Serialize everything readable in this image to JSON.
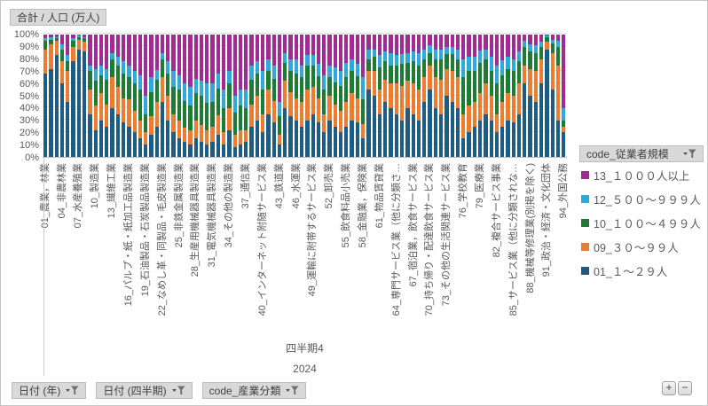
{
  "value_field_button": {
    "label": "合計 / 人口 (万人)"
  },
  "legend": {
    "field_button": "code_従業者規模",
    "items": [
      {
        "label": "13_１０００人以上",
        "color": "#A02B93"
      },
      {
        "label": "12_５００～９９９人",
        "color": "#31A8DC"
      },
      {
        "label": "10_１００～４９９人",
        "color": "#1E7B34"
      },
      {
        "label": "09_３０～９９人",
        "color": "#EC7C30"
      },
      {
        "label": "01_１～２９人",
        "color": "#1F5C83"
      }
    ]
  },
  "axis_field_buttons": [
    {
      "name": "axis-field-button-date-year",
      "label": "日付 (年)"
    },
    {
      "name": "axis-field-button-date-quarter",
      "label": "日付 (四半期)"
    },
    {
      "name": "axis-field-button-industry-code",
      "label": "code_産業分類"
    }
  ],
  "group_labels": {
    "quarter": "四半期4",
    "year": "2024"
  },
  "expand_collapse": {
    "plus": "+",
    "minus": "−"
  },
  "chart_data": {
    "type": "bar",
    "subtype": "100-percent-stacked-column",
    "title": "合計 / 人口 (万人)",
    "ylim": [
      0,
      100
    ],
    "grid": true,
    "legend_position": "right",
    "y_ticks": [
      "100%",
      "90%",
      "80%",
      "70%",
      "60%",
      "50%",
      "40%",
      "30%",
      "20%",
      "10%",
      "0%"
    ],
    "x_label_interval": 3,
    "x_labels_shown": [
      "01_農業，林業",
      "04_非農林業",
      "07_水産養殖業",
      "10_製造業",
      "13_繊維工業",
      "16_パルプ・紙・紙加工品製造業",
      "19_石油製品・石炭製品製造業",
      "22_なめし革・同製品・毛皮製造業",
      "25_非鉄金属製造業",
      "28_生産用機械器具製造業",
      "31_電気機械器具製造業",
      "34_その他の製造業",
      "37_通信業",
      "40_インターネット附随サービス業",
      "43_鉄道業",
      "46_水運業",
      "49_運輸に附帯するサービス業",
      "52_卸売業",
      "55_飲食料品小売業",
      "58_金融業，保険業",
      "61_物品賃貸業",
      "64_専門サービス業（他に分類さ…",
      "67_宿泊業，飲食サービス業",
      "70_持ち帰り・配達飲食サービス業",
      "73_その他の生活関連サービス業",
      "76_学校教育",
      "79_医療業",
      "82_複合サービス事業",
      "85_サービス業（他に分類されな…",
      "88_機械等修理業(別掲を除く)",
      "91_政治・経済・文化団体",
      "94_外国公務"
    ],
    "stack_order_bottom_to_top": [
      "01_１～２９人",
      "09_３０～９９人",
      "10_１００～４９９人",
      "12_５００～９９９人",
      "13_１０００人以上"
    ],
    "colors_bottom_to_top": [
      "#1F5C83",
      "#EC7C30",
      "#1E7B34",
      "#31A8DC",
      "#A02B93"
    ],
    "bars_percent": [
      [
        68,
        20,
        7,
        2,
        3
      ],
      [
        72,
        20,
        4,
        2,
        2
      ],
      [
        83,
        12,
        2,
        1,
        2
      ],
      [
        60,
        18,
        10,
        4,
        8
      ],
      [
        45,
        25,
        8,
        5,
        17
      ],
      [
        78,
        12,
        5,
        2,
        3
      ],
      [
        88,
        8,
        2,
        1,
        1
      ],
      [
        86,
        8,
        3,
        1,
        2
      ],
      [
        35,
        20,
        15,
        5,
        25
      ],
      [
        22,
        20,
        20,
        10,
        28
      ],
      [
        30,
        22,
        15,
        8,
        25
      ],
      [
        25,
        18,
        20,
        9,
        28
      ],
      [
        40,
        25,
        15,
        5,
        15
      ],
      [
        35,
        22,
        18,
        7,
        18
      ],
      [
        28,
        20,
        20,
        10,
        22
      ],
      [
        25,
        22,
        18,
        10,
        25
      ],
      [
        20,
        18,
        22,
        10,
        30
      ],
      [
        15,
        15,
        25,
        12,
        33
      ],
      [
        10,
        10,
        15,
        15,
        50
      ],
      [
        18,
        15,
        20,
        12,
        35
      ],
      [
        25,
        20,
        18,
        8,
        29
      ],
      [
        45,
        20,
        15,
        5,
        15
      ],
      [
        30,
        20,
        18,
        10,
        22
      ],
      [
        20,
        15,
        22,
        13,
        30
      ],
      [
        15,
        15,
        25,
        12,
        33
      ],
      [
        12,
        12,
        22,
        14,
        40
      ],
      [
        10,
        12,
        20,
        15,
        43
      ],
      [
        15,
        15,
        22,
        12,
        36
      ],
      [
        12,
        14,
        24,
        12,
        38
      ],
      [
        10,
        12,
        22,
        16,
        40
      ],
      [
        12,
        13,
        20,
        15,
        40
      ],
      [
        18,
        16,
        22,
        12,
        32
      ],
      [
        10,
        10,
        20,
        15,
        45
      ],
      [
        22,
        18,
        20,
        10,
        30
      ],
      [
        8,
        10,
        18,
        14,
        50
      ],
      [
        10,
        12,
        20,
        13,
        45
      ],
      [
        12,
        10,
        18,
        15,
        45
      ],
      [
        25,
        18,
        20,
        12,
        25
      ],
      [
        30,
        20,
        18,
        10,
        22
      ],
      [
        20,
        15,
        20,
        15,
        30
      ],
      [
        35,
        20,
        15,
        10,
        20
      ],
      [
        28,
        18,
        18,
        11,
        25
      ],
      [
        10,
        8,
        15,
        12,
        55
      ],
      [
        40,
        22,
        15,
        8,
        15
      ],
      [
        33,
        20,
        17,
        10,
        20
      ],
      [
        30,
        18,
        20,
        12,
        20
      ],
      [
        25,
        20,
        20,
        10,
        25
      ],
      [
        30,
        25,
        20,
        8,
        17
      ],
      [
        35,
        22,
        18,
        8,
        17
      ],
      [
        28,
        20,
        18,
        10,
        24
      ],
      [
        20,
        15,
        20,
        12,
        33
      ],
      [
        30,
        20,
        15,
        10,
        25
      ],
      [
        25,
        18,
        18,
        12,
        27
      ],
      [
        20,
        18,
        20,
        12,
        30
      ],
      [
        25,
        20,
        20,
        12,
        23
      ],
      [
        30,
        22,
        18,
        10,
        20
      ],
      [
        28,
        20,
        18,
        10,
        24
      ],
      [
        15,
        12,
        20,
        18,
        35
      ],
      [
        55,
        15,
        10,
        8,
        12
      ],
      [
        50,
        20,
        12,
        6,
        12
      ],
      [
        35,
        20,
        18,
        10,
        17
      ],
      [
        45,
        18,
        15,
        8,
        14
      ],
      [
        40,
        20,
        15,
        10,
        15
      ],
      [
        35,
        25,
        15,
        8,
        17
      ],
      [
        30,
        28,
        18,
        8,
        16
      ],
      [
        40,
        22,
        15,
        8,
        15
      ],
      [
        35,
        25,
        18,
        8,
        14
      ],
      [
        30,
        25,
        20,
        10,
        15
      ],
      [
        45,
        20,
        15,
        8,
        12
      ],
      [
        55,
        20,
        10,
        6,
        9
      ],
      [
        40,
        25,
        15,
        8,
        12
      ],
      [
        35,
        28,
        17,
        8,
        12
      ],
      [
        50,
        22,
        12,
        6,
        10
      ],
      [
        45,
        25,
        14,
        6,
        10
      ],
      [
        40,
        25,
        15,
        8,
        12
      ],
      [
        15,
        20,
        30,
        15,
        20
      ],
      [
        20,
        22,
        28,
        12,
        18
      ],
      [
        25,
        20,
        25,
        12,
        18
      ],
      [
        30,
        22,
        25,
        10,
        13
      ],
      [
        35,
        25,
        20,
        8,
        12
      ],
      [
        30,
        20,
        20,
        12,
        18
      ],
      [
        20,
        15,
        25,
        15,
        25
      ],
      [
        25,
        20,
        22,
        12,
        21
      ],
      [
        30,
        22,
        20,
        10,
        18
      ],
      [
        28,
        22,
        20,
        10,
        20
      ],
      [
        35,
        25,
        18,
        8,
        14
      ],
      [
        60,
        15,
        15,
        5,
        5
      ],
      [
        50,
        22,
        14,
        6,
        8
      ],
      [
        45,
        25,
        15,
        6,
        9
      ],
      [
        60,
        20,
        10,
        4,
        6
      ],
      [
        88,
        6,
        4,
        1,
        1
      ],
      [
        55,
        30,
        8,
        3,
        4
      ],
      [
        30,
        45,
        15,
        5,
        5
      ],
      [
        20,
        5,
        5,
        10,
        60
      ]
    ]
  }
}
